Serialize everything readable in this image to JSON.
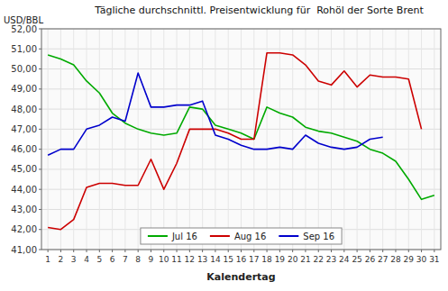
{
  "chart_data": {
    "type": "line",
    "title": "Tägliche durchschnittl. Preisentwicklung für  Rohöl der Sorte Brent",
    "x_label": "Kalendertag",
    "y_label": "USD/BBL",
    "x": [
      1,
      2,
      3,
      4,
      5,
      6,
      7,
      8,
      9,
      10,
      11,
      12,
      13,
      14,
      15,
      16,
      17,
      18,
      19,
      20,
      21,
      22,
      23,
      24,
      25,
      26,
      27,
      28,
      29,
      30,
      31
    ],
    "xlim": [
      0.5,
      31.5
    ],
    "xticks": [
      1,
      2,
      3,
      4,
      5,
      6,
      7,
      8,
      9,
      10,
      11,
      12,
      13,
      14,
      15,
      16,
      17,
      18,
      19,
      20,
      21,
      22,
      23,
      24,
      25,
      26,
      27,
      28,
      29,
      30,
      31
    ],
    "ylim": [
      41.0,
      52.0
    ],
    "yticks": [
      {
        "value": 41.0,
        "label": "41,00"
      },
      {
        "value": 42.0,
        "label": "42,00"
      },
      {
        "value": 43.0,
        "label": "43,00"
      },
      {
        "value": 44.0,
        "label": "44,00"
      },
      {
        "value": 45.0,
        "label": "45,00"
      },
      {
        "value": 46.0,
        "label": "46,00"
      },
      {
        "value": 47.0,
        "label": "47,00"
      },
      {
        "value": 48.0,
        "label": "48,00"
      },
      {
        "value": 49.0,
        "label": "49,00"
      },
      {
        "value": 50.0,
        "label": "50,00"
      },
      {
        "value": 51.0,
        "label": "51,00"
      },
      {
        "value": 52.0,
        "label": "52,00"
      }
    ],
    "grid": true,
    "legend": "bottom",
    "series": [
      {
        "name": "Jul 16",
        "color": "#00AA00",
        "values": [
          50.7,
          50.5,
          50.2,
          49.4,
          48.8,
          47.8,
          47.3,
          47.0,
          46.8,
          46.7,
          46.8,
          48.1,
          48.0,
          47.2,
          47.0,
          46.8,
          46.5,
          48.1,
          47.8,
          47.6,
          47.1,
          46.9,
          46.8,
          46.6,
          46.4,
          46.0,
          45.8,
          45.4,
          44.5,
          43.5,
          43.7
        ]
      },
      {
        "name": "Aug 16",
        "color": "#CC0000",
        "values": [
          42.1,
          42.0,
          42.5,
          44.1,
          44.3,
          44.3,
          44.2,
          44.2,
          45.5,
          44.0,
          45.3,
          47.0,
          47.0,
          47.0,
          46.8,
          46.5,
          46.5,
          50.8,
          50.8,
          50.7,
          50.2,
          49.4,
          49.2,
          49.9,
          49.1,
          49.7,
          49.6,
          49.6,
          49.5,
          47.0,
          null
        ]
      },
      {
        "name": "Sep 16",
        "color": "#0000CC",
        "values": [
          45.7,
          46.0,
          46.0,
          47.0,
          47.2,
          47.6,
          47.4,
          49.8,
          48.1,
          48.1,
          48.2,
          48.2,
          48.4,
          46.7,
          46.5,
          46.2,
          46.0,
          46.0,
          46.1,
          46.0,
          46.7,
          46.3,
          46.1,
          46.0,
          46.1,
          46.5,
          46.6,
          null,
          null,
          null,
          null
        ]
      }
    ]
  }
}
